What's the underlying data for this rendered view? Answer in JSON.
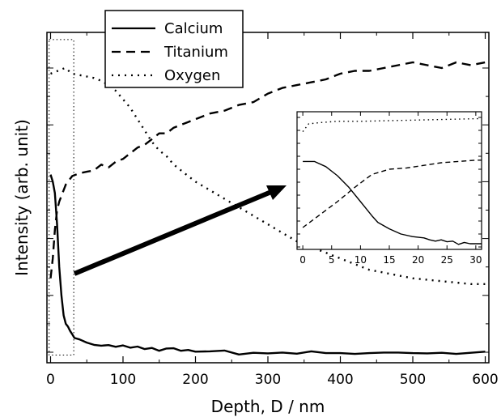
{
  "chart_data": {
    "type": "line",
    "xlabel": "Depth, D / nm",
    "ylabel": "Intensity (arb. unit)",
    "xlim": [
      -5,
      605
    ],
    "ylim": [
      0,
      1.0
    ],
    "x_ticks": [
      0,
      100,
      200,
      300,
      400,
      500,
      600
    ],
    "show_y_tick_labels": false,
    "grid": false,
    "legend": {
      "placement": "top-left",
      "entries": [
        {
          "name": "Calcium",
          "style": "solid"
        },
        {
          "name": "Titanium",
          "style": "dashed"
        },
        {
          "name": "Oxygen",
          "style": "dotted"
        }
      ]
    },
    "series": [
      {
        "name": "Calcium",
        "style": "solid",
        "x": [
          0,
          3,
          6,
          9,
          12,
          15,
          18,
          21,
          24,
          27,
          30,
          33,
          40,
          50,
          60,
          70,
          80,
          90,
          100,
          110,
          120,
          130,
          140,
          150,
          160,
          170,
          180,
          190,
          200,
          220,
          240,
          260,
          280,
          300,
          320,
          340,
          360,
          380,
          400,
          420,
          440,
          460,
          480,
          500,
          520,
          540,
          560,
          580,
          600
        ],
        "y": [
          0.625,
          0.6,
          0.56,
          0.45,
          0.3,
          0.2,
          0.13,
          0.1,
          0.09,
          0.075,
          0.063,
          0.05,
          0.045,
          0.034,
          0.026,
          0.023,
          0.025,
          0.019,
          0.024,
          0.016,
          0.02,
          0.011,
          0.015,
          0.005,
          0.013,
          0.014,
          0.005,
          0.008,
          0.002,
          0.003,
          0.006,
          -0.008,
          -0.002,
          -0.004,
          -0.001,
          -0.005,
          0.003,
          -0.003,
          -0.003,
          -0.006,
          -0.003,
          -0.001,
          -0.001,
          -0.003,
          -0.004,
          -0.002,
          -0.006,
          -0.002,
          0.002
        ]
      },
      {
        "name": "Titanium",
        "style": "dashed",
        "x": [
          0,
          3,
          6,
          9,
          12,
          15,
          18,
          21,
          24,
          27,
          30,
          40,
          50,
          60,
          70,
          80,
          90,
          100,
          110,
          120,
          130,
          140,
          150,
          160,
          170,
          180,
          190,
          200,
          220,
          240,
          260,
          280,
          300,
          320,
          340,
          360,
          380,
          400,
          420,
          440,
          460,
          480,
          500,
          520,
          540,
          560,
          580,
          600
        ],
        "y": [
          0.26,
          0.33,
          0.43,
          0.5,
          0.53,
          0.55,
          0.57,
          0.59,
          0.6,
          0.61,
          0.62,
          0.63,
          0.635,
          0.64,
          0.66,
          0.65,
          0.67,
          0.68,
          0.7,
          0.72,
          0.73,
          0.75,
          0.77,
          0.77,
          0.79,
          0.8,
          0.81,
          0.82,
          0.84,
          0.85,
          0.87,
          0.88,
          0.91,
          0.93,
          0.94,
          0.95,
          0.96,
          0.98,
          0.99,
          0.99,
          1.0,
          1.01,
          1.02,
          1.01,
          1.0,
          1.02,
          1.01,
          1.02
        ]
      },
      {
        "name": "Oxygen",
        "style": "dotted",
        "x": [
          0,
          10,
          20,
          30,
          40,
          50,
          60,
          70,
          80,
          90,
          100,
          110,
          120,
          130,
          140,
          150,
          160,
          170,
          180,
          190,
          200,
          220,
          240,
          260,
          280,
          300,
          320,
          340,
          360,
          380,
          400,
          420,
          440,
          460,
          480,
          500,
          520,
          540,
          560,
          580,
          600
        ],
        "y": [
          0.98,
          0.99,
          1.0,
          0.98,
          0.975,
          0.97,
          0.965,
          0.955,
          0.94,
          0.92,
          0.89,
          0.86,
          0.82,
          0.78,
          0.74,
          0.71,
          0.69,
          0.66,
          0.64,
          0.62,
          0.6,
          0.57,
          0.54,
          0.51,
          0.48,
          0.45,
          0.42,
          0.39,
          0.37,
          0.35,
          0.33,
          0.31,
          0.29,
          0.28,
          0.27,
          0.26,
          0.255,
          0.25,
          0.245,
          0.24,
          0.24
        ]
      }
    ],
    "zoom_box": {
      "x": [
        -2,
        32
      ],
      "y": [
        -0.01,
        1.1
      ]
    },
    "inset": {
      "type": "line",
      "xlim": [
        -1,
        31
      ],
      "ylim": [
        0,
        1.0
      ],
      "x_ticks": [
        0,
        5,
        10,
        15,
        20,
        25,
        30
      ],
      "series": [
        {
          "name": "Calcium",
          "style": "solid",
          "x": [
            0,
            2,
            4,
            6,
            8,
            10,
            12,
            13,
            15,
            17,
            19,
            21,
            22,
            23,
            24,
            25,
            26,
            27,
            28,
            29,
            30,
            31
          ],
          "y": [
            0.66,
            0.66,
            0.62,
            0.55,
            0.46,
            0.35,
            0.24,
            0.19,
            0.14,
            0.1,
            0.08,
            0.07,
            0.055,
            0.045,
            0.055,
            0.04,
            0.045,
            0.02,
            0.035,
            0.025,
            0.025,
            0.025
          ]
        },
        {
          "name": "Titanium",
          "style": "dashed",
          "x": [
            0,
            3,
            6,
            9,
            12,
            15,
            18,
            21,
            24,
            27,
            30,
            31
          ],
          "y": [
            0.15,
            0.25,
            0.35,
            0.46,
            0.56,
            0.6,
            0.61,
            0.63,
            0.65,
            0.66,
            0.67,
            0.67
          ]
        },
        {
          "name": "Oxygen",
          "style": "dotted",
          "x": [
            0,
            1,
            3,
            6,
            10,
            15,
            20,
            25,
            30,
            31
          ],
          "y": [
            0.89,
            0.95,
            0.96,
            0.97,
            0.97,
            0.975,
            0.98,
            0.985,
            0.99,
            0.99
          ]
        }
      ]
    }
  }
}
